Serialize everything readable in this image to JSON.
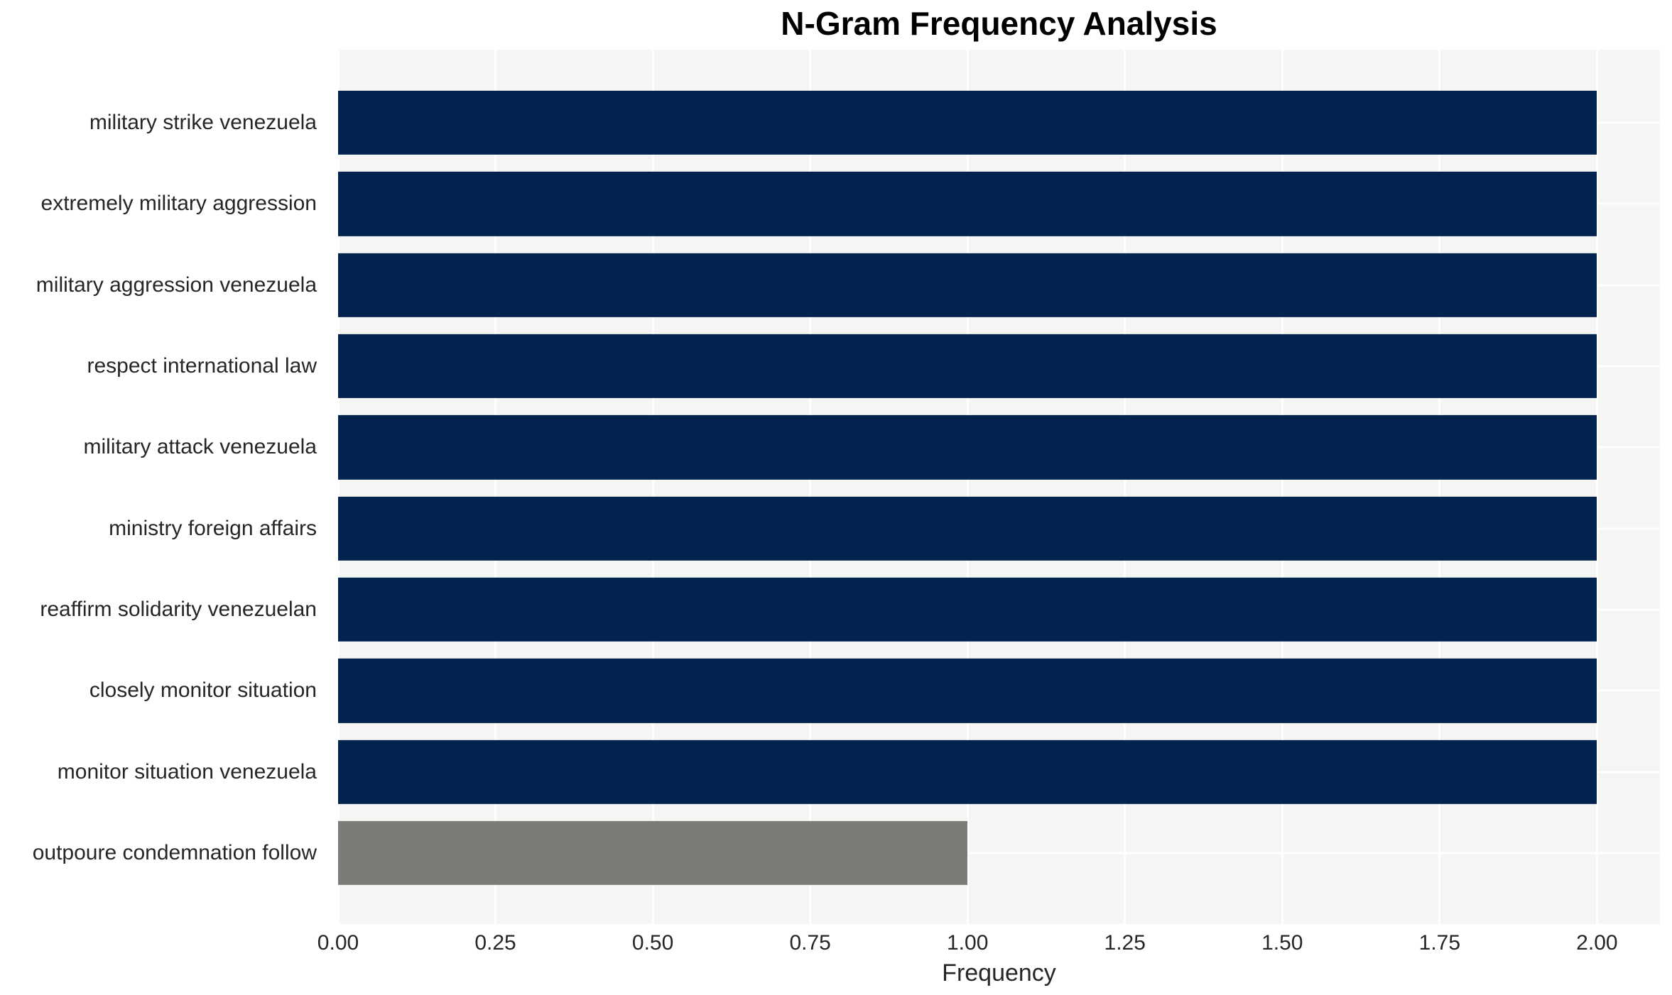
{
  "chart_data": {
    "type": "bar",
    "orientation": "horizontal",
    "title": "N-Gram Frequency Analysis",
    "xlabel": "Frequency",
    "ylabel": "",
    "categories": [
      "military strike venezuela",
      "extremely military aggression",
      "military aggression venezuela",
      "respect international law",
      "military attack venezuela",
      "ministry foreign affairs",
      "reaffirm solidarity venezuelan",
      "closely monitor situation",
      "monitor situation venezuela",
      "outpoure condemnation follow"
    ],
    "values": [
      2.0,
      2.0,
      2.0,
      2.0,
      2.0,
      2.0,
      2.0,
      2.0,
      2.0,
      1.0
    ],
    "bar_colors": [
      "#03234f",
      "#03234f",
      "#03234f",
      "#03234f",
      "#03234f",
      "#03234f",
      "#03234f",
      "#03234f",
      "#03234f",
      "#7b7b78"
    ],
    "x_ticks": [
      0.0,
      0.25,
      0.5,
      0.75,
      1.0,
      1.25,
      1.5,
      1.75,
      2.0
    ],
    "x_tick_labels": [
      "0.00",
      "0.25",
      "0.50",
      "0.75",
      "1.00",
      "1.25",
      "1.50",
      "1.75",
      "2.00"
    ],
    "xlim": [
      0,
      2.1
    ],
    "grid": true,
    "legend": "none",
    "colors": {
      "plot_background": "#f5f5f4",
      "grid_line": "#ffffff",
      "tick_text": "#262626",
      "title_text": "#000000"
    }
  }
}
